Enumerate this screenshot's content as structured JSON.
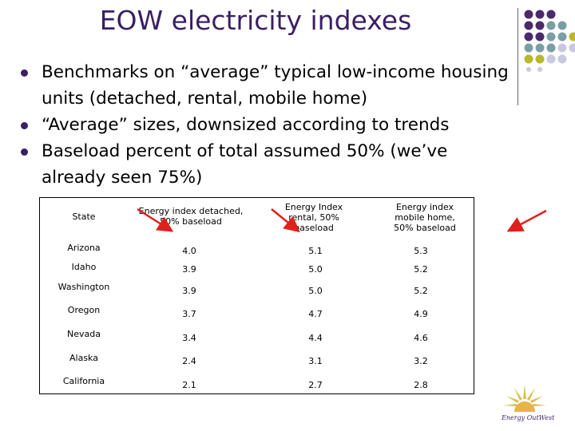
{
  "title": "EOW electricity indexes",
  "bullets": [
    "Benchmarks on “average” typical low-income housing units (detached, rental, mobile home)",
    "“Average” sizes, downsized according to trends",
    "Baseload percent of total assumed 50% (we’ve already seen 75%)"
  ],
  "table": {
    "headers": {
      "state": "State",
      "detached": "Energy index detached, 50% baseload",
      "rental": "Energy Index rental, 50% baseload",
      "mobile": "Energy index mobile home, 50% baseload"
    },
    "rows": [
      {
        "state": "Arizona",
        "detached": "4.0",
        "rental": "5.1",
        "mobile": "5.3"
      },
      {
        "state": "Idaho",
        "detached": "3.9",
        "rental": "5.0",
        "mobile": "5.2"
      },
      {
        "state": "Washington",
        "detached": "3.9",
        "rental": "5.0",
        "mobile": "5.2"
      },
      {
        "state": "Oregon",
        "detached": "3.7",
        "rental": "4.7",
        "mobile": "4.9"
      },
      {
        "state": "Nevada",
        "detached": "3.4",
        "rental": "4.4",
        "mobile": "4.6"
      },
      {
        "state": "Alaska",
        "detached": "2.4",
        "rental": "3.1",
        "mobile": "3.2"
      },
      {
        "state": "California",
        "detached": "2.1",
        "rental": "2.7",
        "mobile": "2.8"
      }
    ]
  },
  "logo": {
    "text": "Energy OutWest",
    "icon": "sun-logo-icon"
  },
  "colors": {
    "accent": "#3a1f63",
    "arrow": "#e0201b",
    "dot_purple": "#4b2a6b",
    "dot_teal": "#7a9ea3",
    "dot_olive": "#b9b72e",
    "dot_lavender": "#c9c8e0"
  }
}
